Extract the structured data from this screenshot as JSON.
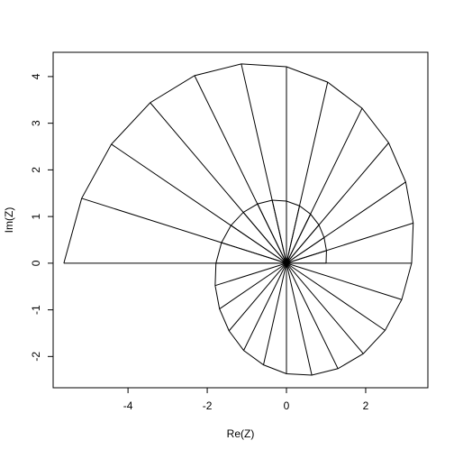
{
  "chart_data": {
    "type": "line",
    "xlabel": "Re(Z)",
    "ylabel": "Im(Z)",
    "x": [
      1,
      1.01,
      0.95,
      0.82,
      0.61,
      0.33,
      0,
      -0.36,
      -0.73,
      -1.09,
      -1.4,
      -1.64,
      -1.78,
      -1.8,
      -1.69,
      -1.45,
      -1.08,
      -0.58,
      0,
      0.64,
      1.3,
      1.94,
      2.49,
      2.91,
      3.16,
      3.2,
      3.01,
      2.58,
      1.91,
      1.04,
      0,
      -1.14,
      -2.32,
      -3.44,
      -4.42,
      -5.17,
      -5.62
    ],
    "values": [
      0,
      0.27,
      0.55,
      0.82,
      1.05,
      1.23,
      1.33,
      1.35,
      1.27,
      1.09,
      0.81,
      0.44,
      0,
      -0.48,
      -0.98,
      -1.45,
      -1.87,
      -2.18,
      -2.37,
      -2.4,
      -2.26,
      -1.94,
      -1.44,
      -0.78,
      0,
      0.86,
      1.74,
      2.58,
      3.32,
      3.88,
      4.21,
      4.27,
      4.02,
      3.44,
      2.55,
      1.39,
      0
    ],
    "color": "#000000",
    "xlim": [
      -5.89,
      3.57
    ],
    "xticks": [
      -4,
      -2,
      0,
      2
    ],
    "ylim": [
      -2.67,
      4.52
    ],
    "yticks": [
      -2,
      -1,
      0,
      1,
      2,
      3,
      4
    ]
  }
}
